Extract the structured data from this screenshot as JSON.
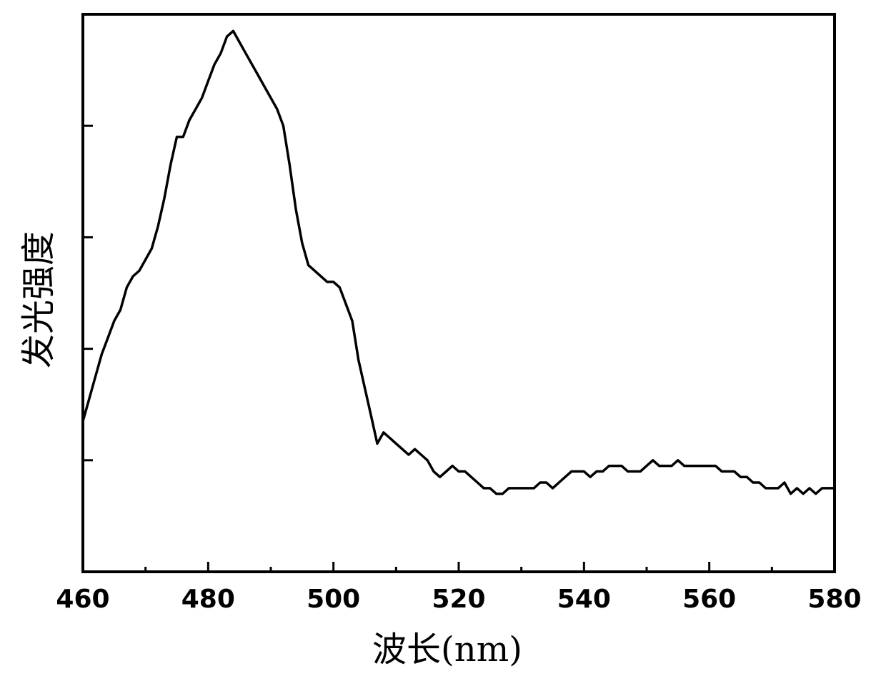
{
  "chart_data": {
    "type": "line",
    "title": "",
    "xlabel": "波长(nm)",
    "ylabel": "发光强度",
    "xlim": [
      460,
      580
    ],
    "ylim": [
      0,
      1
    ],
    "x_ticks": [
      "460",
      "480",
      "500",
      "520",
      "540",
      "560",
      "580"
    ],
    "x_minor_ticks": [
      470,
      490,
      510,
      530,
      550,
      570
    ],
    "y_tick_values": [
      0.2,
      0.4,
      0.6,
      0.8,
      1.0
    ],
    "y_tick_labels_shown": false,
    "grid": false,
    "legend": "none",
    "line_color": "#000000",
    "series": [
      {
        "x": [
          460,
          461,
          462,
          463,
          464,
          465,
          466,
          467,
          468,
          469,
          470,
          471,
          472,
          473,
          474,
          475,
          476,
          477,
          478,
          479,
          480,
          481,
          482,
          483,
          484,
          485,
          486,
          487,
          488,
          489,
          490,
          491,
          492,
          493,
          494,
          495,
          496,
          497,
          498,
          499,
          500,
          501,
          502,
          503,
          504,
          505,
          506,
          507,
          508,
          509,
          510,
          511,
          512,
          513,
          514,
          515,
          516,
          517,
          518,
          519,
          520,
          521,
          522,
          523,
          524,
          525,
          526,
          527,
          528,
          529,
          530,
          531,
          532,
          533,
          534,
          535,
          536,
          537,
          538,
          539,
          540,
          541,
          542,
          543,
          544,
          545,
          546,
          547,
          548,
          549,
          550,
          551,
          552,
          553,
          554,
          555,
          556,
          557,
          558,
          559,
          560,
          561,
          562,
          563,
          564,
          565,
          566,
          567,
          568,
          569,
          570,
          571,
          572,
          573,
          574,
          575,
          576,
          577,
          578,
          579,
          580
        ],
        "values": [
          0.27,
          0.31,
          0.35,
          0.39,
          0.42,
          0.45,
          0.47,
          0.51,
          0.53,
          0.54,
          0.56,
          0.58,
          0.62,
          0.67,
          0.73,
          0.78,
          0.78,
          0.81,
          0.83,
          0.85,
          0.88,
          0.91,
          0.93,
          0.96,
          0.97,
          0.95,
          0.93,
          0.91,
          0.89,
          0.87,
          0.85,
          0.83,
          0.8,
          0.73,
          0.65,
          0.59,
          0.55,
          0.54,
          0.53,
          0.52,
          0.52,
          0.51,
          0.48,
          0.45,
          0.38,
          0.33,
          0.28,
          0.23,
          0.25,
          0.24,
          0.23,
          0.22,
          0.21,
          0.22,
          0.21,
          0.2,
          0.18,
          0.17,
          0.18,
          0.19,
          0.18,
          0.18,
          0.17,
          0.16,
          0.15,
          0.15,
          0.14,
          0.14,
          0.15,
          0.15,
          0.15,
          0.15,
          0.15,
          0.16,
          0.16,
          0.15,
          0.16,
          0.17,
          0.18,
          0.18,
          0.18,
          0.17,
          0.18,
          0.18,
          0.19,
          0.19,
          0.19,
          0.18,
          0.18,
          0.18,
          0.19,
          0.2,
          0.19,
          0.19,
          0.19,
          0.2,
          0.19,
          0.19,
          0.19,
          0.19,
          0.19,
          0.19,
          0.18,
          0.18,
          0.18,
          0.17,
          0.17,
          0.16,
          0.16,
          0.15,
          0.15,
          0.15,
          0.16,
          0.14,
          0.15,
          0.14,
          0.15,
          0.14,
          0.15,
          0.15,
          0.15
        ]
      }
    ]
  }
}
